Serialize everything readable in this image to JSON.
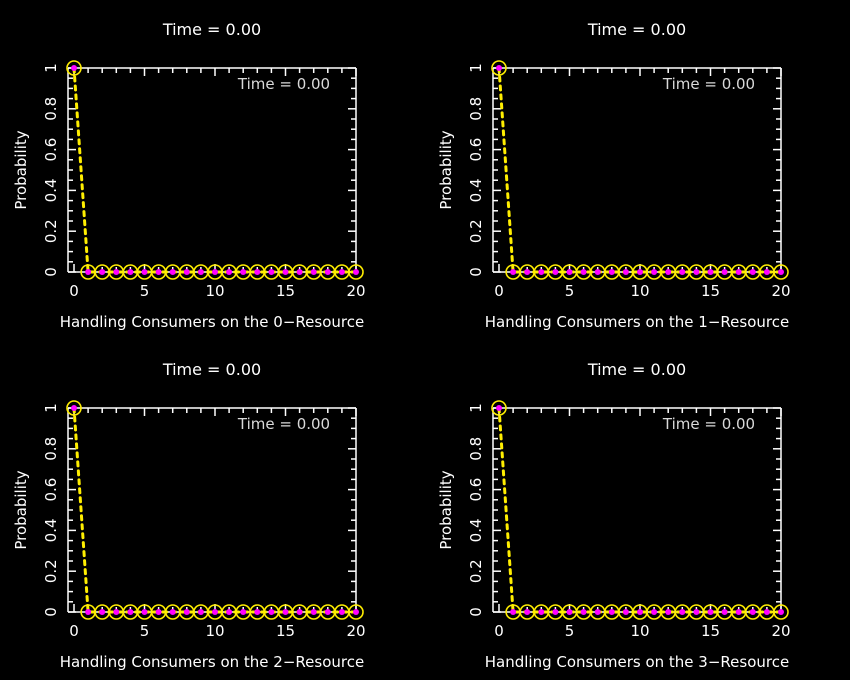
{
  "chart_data": [
    {
      "type": "line",
      "title": "Time =  0.00",
      "annotation": "Time =  0.00",
      "xlabel": "Handling Consumers on the 0−Resource",
      "ylabel": "Probability",
      "xlim": [
        0,
        20
      ],
      "ylim": [
        0,
        1
      ],
      "xticks": [
        0,
        5,
        10,
        15,
        20
      ],
      "yticks": [
        0,
        0.2,
        0.4,
        0.6,
        0.8,
        1
      ],
      "ytick_labels": [
        "0",
        "0.2",
        "0.4",
        "0.6",
        "0.8",
        "1"
      ],
      "x": [
        0,
        1,
        2,
        3,
        4,
        5,
        6,
        7,
        8,
        9,
        10,
        11,
        12,
        13,
        14,
        15,
        16,
        17,
        18,
        19,
        20
      ],
      "values": [
        1,
        0,
        0,
        0,
        0,
        0,
        0,
        0,
        0,
        0,
        0,
        0,
        0,
        0,
        0,
        0,
        0,
        0,
        0,
        0,
        0
      ],
      "line_color": "#ffee00",
      "marker_ring_color": "#ffee00",
      "marker_fill_color": "#ff00ff"
    },
    {
      "type": "line",
      "title": "Time =  0.00",
      "annotation": "Time =  0.00",
      "xlabel": "Handling Consumers on the 1−Resource",
      "ylabel": "Probability",
      "xlim": [
        0,
        20
      ],
      "ylim": [
        0,
        1
      ],
      "xticks": [
        0,
        5,
        10,
        15,
        20
      ],
      "yticks": [
        0,
        0.2,
        0.4,
        0.6,
        0.8,
        1
      ],
      "ytick_labels": [
        "0",
        "0.2",
        "0.4",
        "0.6",
        "0.8",
        "1"
      ],
      "x": [
        0,
        1,
        2,
        3,
        4,
        5,
        6,
        7,
        8,
        9,
        10,
        11,
        12,
        13,
        14,
        15,
        16,
        17,
        18,
        19,
        20
      ],
      "values": [
        1,
        0,
        0,
        0,
        0,
        0,
        0,
        0,
        0,
        0,
        0,
        0,
        0,
        0,
        0,
        0,
        0,
        0,
        0,
        0,
        0
      ],
      "line_color": "#ffee00",
      "marker_ring_color": "#ffee00",
      "marker_fill_color": "#ff00ff"
    },
    {
      "type": "line",
      "title": "Time =  0.00",
      "annotation": "Time =  0.00",
      "xlabel": "Handling Consumers on the 2−Resource",
      "ylabel": "Probability",
      "xlim": [
        0,
        20
      ],
      "ylim": [
        0,
        1
      ],
      "xticks": [
        0,
        5,
        10,
        15,
        20
      ],
      "yticks": [
        0,
        0.2,
        0.4,
        0.6,
        0.8,
        1
      ],
      "ytick_labels": [
        "0",
        "0.2",
        "0.4",
        "0.6",
        "0.8",
        "1"
      ],
      "x": [
        0,
        1,
        2,
        3,
        4,
        5,
        6,
        7,
        8,
        9,
        10,
        11,
        12,
        13,
        14,
        15,
        16,
        17,
        18,
        19,
        20
      ],
      "values": [
        1,
        0,
        0,
        0,
        0,
        0,
        0,
        0,
        0,
        0,
        0,
        0,
        0,
        0,
        0,
        0,
        0,
        0,
        0,
        0,
        0
      ],
      "line_color": "#ffee00",
      "marker_ring_color": "#ffee00",
      "marker_fill_color": "#ff00ff"
    },
    {
      "type": "line",
      "title": "Time =  0.00",
      "annotation": "Time =  0.00",
      "xlabel": "Handling Consumers on the 3−Resource",
      "ylabel": "Probability",
      "xlim": [
        0,
        20
      ],
      "ylim": [
        0,
        1
      ],
      "xticks": [
        0,
        5,
        10,
        15,
        20
      ],
      "yticks": [
        0,
        0.2,
        0.4,
        0.6,
        0.8,
        1
      ],
      "ytick_labels": [
        "0",
        "0.2",
        "0.4",
        "0.6",
        "0.8",
        "1"
      ],
      "x": [
        0,
        1,
        2,
        3,
        4,
        5,
        6,
        7,
        8,
        9,
        10,
        11,
        12,
        13,
        14,
        15,
        16,
        17,
        18,
        19,
        20
      ],
      "values": [
        1,
        0,
        0,
        0,
        0,
        0,
        0,
        0,
        0,
        0,
        0,
        0,
        0,
        0,
        0,
        0,
        0,
        0,
        0,
        0,
        0
      ],
      "line_color": "#ffee00",
      "marker_ring_color": "#ffee00",
      "marker_fill_color": "#ff00ff"
    }
  ]
}
